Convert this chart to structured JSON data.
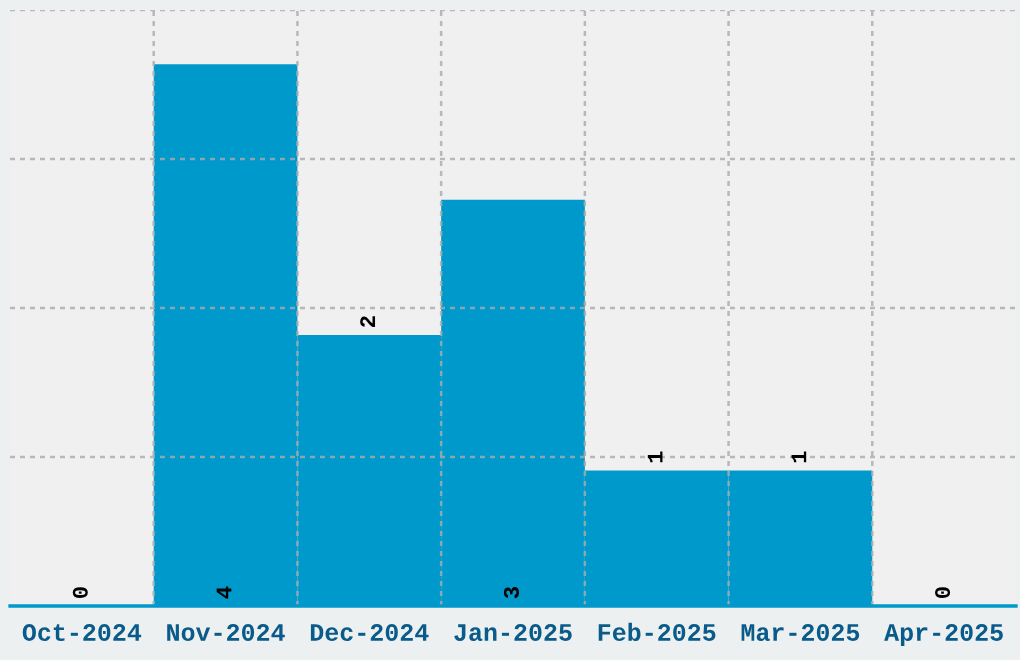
{
  "chart_data": {
    "type": "bar",
    "categories": [
      "Oct-2024",
      "Nov-2024",
      "Dec-2024",
      "Jan-2025",
      "Feb-2025",
      "Mar-2025",
      "Apr-2025"
    ],
    "values": [
      0,
      4,
      2,
      3,
      1,
      1,
      0
    ],
    "color": "#0099cc",
    "ylim": [
      0,
      4.4
    ],
    "yticks": [
      {
        "value": 1.1,
        "label": null
      },
      {
        "value": 2.2,
        "label": null
      },
      {
        "value": 3.3,
        "label": null
      },
      {
        "value": 4.4,
        "label": null
      }
    ],
    "tick_labels": "x",
    "data_labels": true,
    "grid": true
  }
}
